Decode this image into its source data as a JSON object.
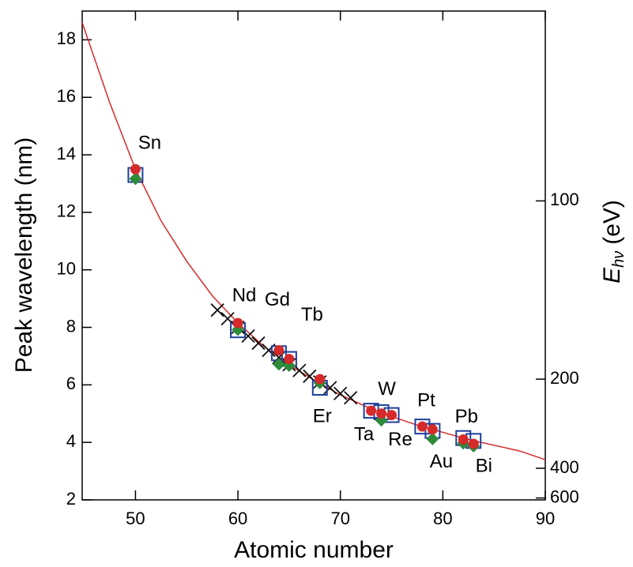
{
  "chart_data": {
    "type": "scatter",
    "xlabel": "Atomic number",
    "ylabel": "Peak wavelength (nm)",
    "y2label": "E",
    "y2label_sub": "hν",
    "y2label_unit": "(eV)",
    "xlim": [
      44.8,
      90
    ],
    "ylim": [
      2,
      19
    ],
    "xticks": [
      50,
      60,
      70,
      80,
      90
    ],
    "yticks": [
      2,
      4,
      6,
      8,
      10,
      12,
      14,
      16,
      18
    ],
    "y2lim": [
      619.92,
      65.25
    ],
    "y2scale": "reciprocal",
    "y2ticks": [
      100,
      200,
      400,
      600
    ],
    "point_labels": [
      "Sn",
      "Nd",
      "Gd",
      "Tb",
      "Er",
      "Ta",
      "W",
      "Re",
      "Pt",
      "Au",
      "Pb",
      "Bi"
    ],
    "series": [
      {
        "marker": "line",
        "color": "#d42a2a",
        "x": [
          44.8,
          47.5,
          50,
          52.5,
          55,
          57.5,
          60,
          62.5,
          65,
          67.5,
          70,
          72.5,
          75,
          77.5,
          80,
          82.5,
          85,
          87.5,
          90
        ],
        "values": [
          18.6,
          15.8,
          13.5,
          11.7,
          10.3,
          9.1,
          8.15,
          7.35,
          6.7,
          6.15,
          5.65,
          5.25,
          4.9,
          4.6,
          4.35,
          4.1,
          3.9,
          3.7,
          3.4
        ]
      },
      {
        "marker": "cross",
        "color": "#111111",
        "x": [
          58,
          59,
          60,
          61,
          62,
          63,
          64,
          65,
          66,
          67,
          68,
          69,
          70,
          71
        ],
        "values": [
          8.6,
          8.3,
          8.0,
          7.7,
          7.45,
          7.2,
          6.95,
          6.7,
          6.5,
          6.3,
          6.1,
          5.9,
          5.7,
          5.55
        ]
      },
      {
        "marker": "square",
        "color": "#1f3f99",
        "x": [
          50,
          60,
          64,
          65,
          68,
          73,
          74,
          75,
          78,
          79,
          82,
          83
        ],
        "values": [
          13.3,
          7.9,
          7.1,
          6.9,
          5.9,
          5.1,
          5.05,
          4.95,
          4.55,
          4.4,
          4.15,
          4.05
        ]
      },
      {
        "marker": "diamond",
        "color": "#2e8b3a",
        "x": [
          50,
          60,
          64,
          65,
          68,
          74,
          79,
          82,
          83
        ],
        "values": [
          13.25,
          8.0,
          6.8,
          6.75,
          6.15,
          4.85,
          4.2,
          4.05,
          3.95
        ]
      },
      {
        "marker": "circle",
        "color": "#d42a2a",
        "x": [
          50,
          60,
          64,
          65,
          68,
          73,
          74,
          75,
          78,
          79,
          82,
          83
        ],
        "values": [
          13.5,
          8.15,
          7.2,
          6.9,
          6.2,
          5.1,
          5.0,
          4.95,
          4.55,
          4.45,
          4.1,
          3.95
        ]
      }
    ]
  }
}
